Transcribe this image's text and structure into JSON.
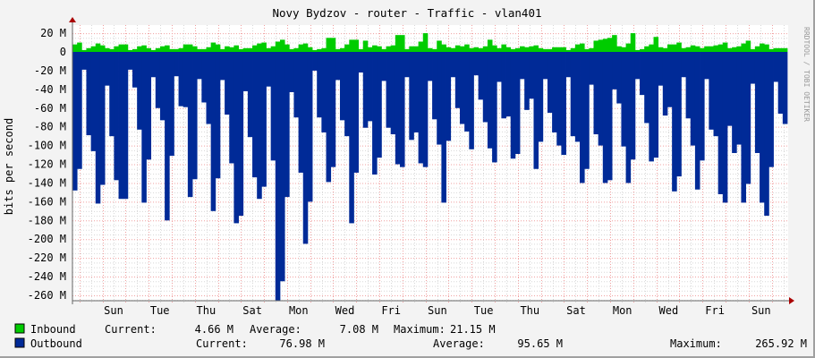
{
  "chart_data": {
    "type": "area",
    "title": "Novy Bydzov - router - Traffic - vlan401",
    "ylabel": "bits per second",
    "xlabel": "",
    "ylim": [
      -265,
      22
    ],
    "y_unit": "M",
    "y_ticks": [
      "20 M",
      "0",
      "-20 M",
      "-40 M",
      "-60 M",
      "-80 M",
      "-100 M",
      "-120 M",
      "-140 M",
      "-160 M",
      "-180 M",
      "-200 M",
      "-220 M",
      "-240 M",
      "-260 M"
    ],
    "y_tick_values": [
      20,
      0,
      -20,
      -40,
      -60,
      -80,
      -100,
      -120,
      -140,
      -160,
      -180,
      -200,
      -220,
      -240,
      -260
    ],
    "x_ticks": [
      "Sun",
      "Tue",
      "Thu",
      "Sat",
      "Mon",
      "Wed",
      "Fri",
      "Sun",
      "Tue",
      "Thu",
      "Sat",
      "Mon",
      "Wed",
      "Fri",
      "Sun"
    ],
    "grid": true,
    "watermark": "RRDTOOL / TOBI OETIKER",
    "series": [
      {
        "name": "Inbound",
        "color": "#00cc00",
        "values": [
          8,
          10,
          2,
          4,
          6,
          9,
          7,
          4,
          3,
          6,
          8,
          8,
          2,
          3,
          6,
          7,
          4,
          2,
          4,
          6,
          7,
          3,
          3,
          4,
          8,
          8,
          6,
          3,
          3,
          5,
          10,
          8,
          3,
          6,
          5,
          7,
          3,
          4,
          4,
          7,
          9,
          10,
          4,
          6,
          11,
          13,
          8,
          3,
          4,
          8,
          9,
          5,
          2,
          3,
          4,
          15,
          15,
          3,
          4,
          8,
          13,
          13,
          3,
          12,
          5,
          7,
          6,
          3,
          6,
          7,
          18,
          18,
          3,
          6,
          6,
          11,
          20,
          4,
          3,
          12,
          8,
          5,
          4,
          7,
          6,
          8,
          4,
          5,
          4,
          6,
          13,
          7,
          4,
          8,
          5,
          3,
          4,
          6,
          5,
          6,
          7,
          4,
          3,
          3,
          5,
          5,
          5,
          2,
          4,
          8,
          9,
          3,
          4,
          12,
          13,
          14,
          15,
          18,
          6,
          5,
          9,
          20,
          2,
          3,
          6,
          8,
          16,
          5,
          4,
          8,
          8,
          10,
          4,
          5,
          7,
          6,
          4,
          6,
          6,
          7,
          8,
          10,
          4,
          5,
          6,
          9,
          12,
          3,
          6,
          9,
          8,
          3,
          4,
          4,
          4
        ]
      },
      {
        "name": "Outbound",
        "color": "#002a97",
        "values": [
          -148,
          -125,
          -19,
          -89,
          -106,
          -162,
          -142,
          -36,
          -90,
          -137,
          -157,
          -157,
          -19,
          -38,
          -83,
          -161,
          -115,
          -27,
          -60,
          -73,
          -180,
          -111,
          -26,
          -58,
          -59,
          -155,
          -136,
          -29,
          -54,
          -77,
          -170,
          -135,
          -30,
          -67,
          -119,
          -183,
          -175,
          -42,
          -91,
          -134,
          -157,
          -144,
          -37,
          -116,
          -266,
          -245,
          -155,
          -43,
          -70,
          -129,
          -205,
          -160,
          -20,
          -70,
          -86,
          -139,
          -123,
          -30,
          -73,
          -90,
          -183,
          -129,
          -22,
          -81,
          -74,
          -131,
          -113,
          -31,
          -81,
          -88,
          -120,
          -123,
          -27,
          -94,
          -86,
          -119,
          -123,
          -31,
          -72,
          -99,
          -161,
          -95,
          -27,
          -60,
          -77,
          -85,
          -104,
          -25,
          -51,
          -75,
          -103,
          -118,
          -32,
          -71,
          -69,
          -114,
          -109,
          -29,
          -62,
          -50,
          -125,
          -96,
          -29,
          -65,
          -86,
          -100,
          -110,
          -27,
          -90,
          -96,
          -140,
          -125,
          -35,
          -88,
          -100,
          -140,
          -137,
          -40,
          -55,
          -101,
          -140,
          -115,
          -29,
          -46,
          -76,
          -117,
          -113,
          -36,
          -68,
          -59,
          -149,
          -133,
          -27,
          -71,
          -100,
          -147,
          -116,
          -29,
          -83,
          -90,
          -152,
          -161,
          -79,
          -108,
          -99,
          -161,
          -141,
          -34,
          -108,
          -161,
          -175,
          -123,
          -32,
          -66,
          -77
        ]
      }
    ]
  },
  "legend": {
    "inbound": {
      "label": "Inbound",
      "current_label": "Current:",
      "current": "4.66 M",
      "average_label": "Average:",
      "average": "7.08 M",
      "maximum_label": "Maximum:",
      "maximum": "21.15 M",
      "color": "#00cc00"
    },
    "outbound": {
      "label": "Outbound",
      "current_label": "Current:",
      "current": "76.98 M",
      "average_label": "Average:",
      "average": "95.65 M",
      "maximum_label": "Maximum:",
      "maximum": "265.92 M",
      "color": "#002a97"
    }
  }
}
